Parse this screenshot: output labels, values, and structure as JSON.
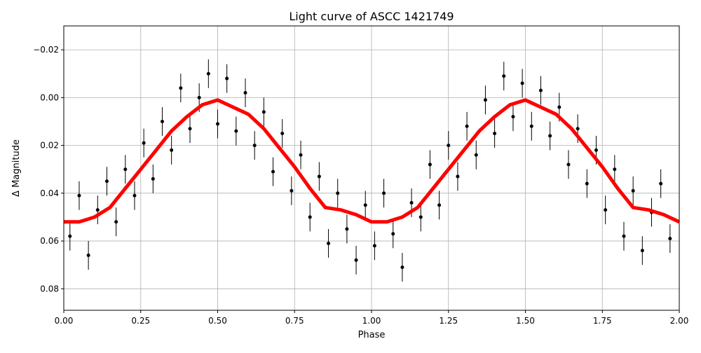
{
  "chart_data": {
    "type": "scatter",
    "title": "Light curve of ASCC 1421749",
    "xlabel": "Phase",
    "ylabel": "Δ Magnitude",
    "xlim": [
      0,
      2
    ],
    "ylim": [
      0.089,
      -0.03
    ],
    "y_inverted": true,
    "grid": true,
    "xticks": [
      0,
      0.25,
      0.5,
      0.75,
      1.0,
      1.25,
      1.5,
      1.75,
      2.0
    ],
    "xtick_labels": [
      "0.00",
      "0.25",
      "0.50",
      "0.75",
      "1.00",
      "1.25",
      "1.50",
      "1.75",
      "2.00"
    ],
    "yticks": [
      -0.02,
      0.0,
      0.02,
      0.04,
      0.06,
      0.08
    ],
    "ytick_labels": [
      "−0.02",
      "0.00",
      "0.02",
      "0.04",
      "0.06",
      "0.08"
    ],
    "series": [
      {
        "kind": "errorbar",
        "color": "#000000",
        "yerr": 0.006,
        "x": [
          0.02,
          0.05,
          0.08,
          0.11,
          0.14,
          0.17,
          0.2,
          0.23,
          0.26,
          0.29,
          0.32,
          0.35,
          0.38,
          0.41,
          0.44,
          0.47,
          0.5,
          0.53,
          0.56,
          0.59,
          0.62,
          0.65,
          0.68,
          0.71,
          0.74,
          0.77,
          0.8,
          0.83,
          0.86,
          0.89,
          0.92,
          0.95,
          0.98,
          1.01,
          1.04,
          1.07,
          1.1,
          1.13,
          1.16,
          1.19,
          1.22,
          1.25,
          1.28,
          1.31,
          1.34,
          1.37,
          1.4,
          1.43,
          1.46,
          1.49,
          1.52,
          1.55,
          1.58,
          1.61,
          1.64,
          1.67,
          1.7,
          1.73,
          1.76,
          1.79,
          1.82,
          1.85,
          1.88,
          1.91,
          1.94,
          1.97
        ],
        "y": [
          0.058,
          0.041,
          0.066,
          0.047,
          0.035,
          0.052,
          0.03,
          0.041,
          0.019,
          0.034,
          0.01,
          0.022,
          -0.004,
          0.013,
          0.0,
          -0.01,
          0.011,
          -0.008,
          0.014,
          -0.002,
          0.02,
          0.006,
          0.031,
          0.015,
          0.039,
          0.024,
          0.05,
          0.033,
          0.061,
          0.04,
          0.055,
          0.068,
          0.045,
          0.062,
          0.04,
          0.057,
          0.071,
          0.044,
          0.05,
          0.028,
          0.045,
          0.02,
          0.033,
          0.012,
          0.024,
          0.001,
          0.015,
          -0.009,
          0.008,
          -0.006,
          0.012,
          -0.003,
          0.016,
          0.004,
          0.028,
          0.013,
          0.036,
          0.022,
          0.047,
          0.03,
          0.058,
          0.039,
          0.064,
          0.048,
          0.036,
          0.059
        ]
      },
      {
        "kind": "line",
        "color": "#ff0000",
        "x": [
          0,
          0.05,
          0.1,
          0.15,
          0.2,
          0.25,
          0.3,
          0.35,
          0.4,
          0.45,
          0.5,
          0.55,
          0.6,
          0.65,
          0.7,
          0.75,
          0.8,
          0.85,
          0.9,
          0.95,
          1.0,
          1.05,
          1.1,
          1.15,
          1.2,
          1.25,
          1.3,
          1.35,
          1.4,
          1.45,
          1.5,
          1.55,
          1.6,
          1.65,
          1.7,
          1.75,
          1.8,
          1.85,
          1.9,
          1.95,
          2.0
        ],
        "y": [
          0.052,
          0.052,
          0.05,
          0.046,
          0.038,
          0.03,
          0.022,
          0.014,
          0.008,
          0.003,
          0.001,
          0.004,
          0.007,
          0.013,
          0.021,
          0.029,
          0.038,
          0.046,
          0.047,
          0.049,
          0.052,
          0.052,
          0.05,
          0.046,
          0.038,
          0.03,
          0.022,
          0.014,
          0.008,
          0.003,
          0.001,
          0.004,
          0.007,
          0.013,
          0.021,
          0.029,
          0.038,
          0.046,
          0.047,
          0.049,
          0.052
        ]
      }
    ]
  }
}
